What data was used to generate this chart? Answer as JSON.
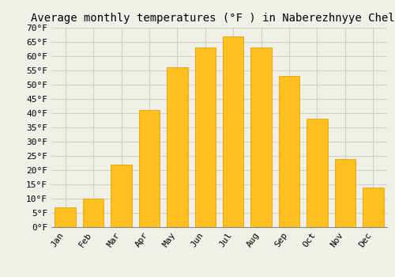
{
  "title": "Average monthly temperatures (°F ) in Naberezhnyye Chelny",
  "months": [
    "Jan",
    "Feb",
    "Mar",
    "Apr",
    "May",
    "Jun",
    "Jul",
    "Aug",
    "Sep",
    "Oct",
    "Nov",
    "Dec"
  ],
  "values": [
    7,
    10,
    22,
    41,
    56,
    63,
    67,
    63,
    53,
    38,
    24,
    14
  ],
  "bar_color": "#FFC020",
  "bar_edge_color": "#E8A000",
  "background_color": "#F0F0E8",
  "grid_color": "#D0D0C8",
  "ylim": [
    0,
    70
  ],
  "yticks": [
    0,
    5,
    10,
    15,
    20,
    25,
    30,
    35,
    40,
    45,
    50,
    55,
    60,
    65,
    70
  ],
  "ylabel_suffix": "°F",
  "title_fontsize": 10,
  "tick_fontsize": 8,
  "font_family": "monospace"
}
